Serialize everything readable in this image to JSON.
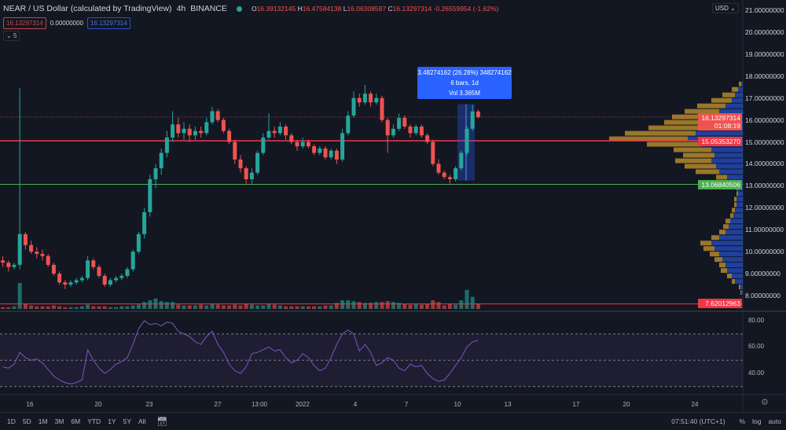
{
  "header": {
    "symbol": "NEAR / US Dollar (calculated by TradingView)",
    "interval": "4h",
    "exchange": "BINANCE",
    "ohlc": {
      "o_label": "O",
      "o": "16.39132145",
      "h_label": "H",
      "h": "16.47584138",
      "l_label": "L",
      "l": "16.06308587",
      "c_label": "C",
      "c": "16.13297314",
      "change": "-0.26559954 (-1.62%)"
    },
    "sell": "16.13297314",
    "spread": "0.00000000",
    "buy": "16.13297314",
    "indicators_toggle": "5"
  },
  "measure": {
    "line1": "3.48274162 (26.28%) 348274162",
    "line2": "6 bars, 1d",
    "line3": "Vol 3.365M",
    "from_price": 13.24,
    "to_price": 16.72
  },
  "price_axis": {
    "currency": "USD",
    "ticks": [
      "8.00000000",
      "9.00000000",
      "10.00000000",
      "11.00000000",
      "12.00000000",
      "13.00000000",
      "14.00000000",
      "15.00000000",
      "16.00000000",
      "17.00000000",
      "18.00000000",
      "19.00000000",
      "20.00000000",
      "21.00000000"
    ],
    "last_price": "16.13297314",
    "countdown": "01:08:19",
    "red_level": "15.05353270",
    "green_level": "13.06840506",
    "bottom_level": "7.62012963"
  },
  "rsi_axis": {
    "ticks": [
      "80.00",
      "60.00",
      "40.00"
    ]
  },
  "time_axis": {
    "ticks": [
      "16",
      "20",
      "23",
      "27",
      "13:00",
      "2022",
      "4",
      "7",
      "10",
      "13",
      "17",
      "20",
      "24"
    ]
  },
  "toolbar": {
    "ranges": [
      "1D",
      "5D",
      "1M",
      "3M",
      "6M",
      "YTD",
      "1Y",
      "5Y",
      "All"
    ],
    "time": "07:51:40 (UTC+1)",
    "percent": "%",
    "log": "log",
    "auto": "auto"
  },
  "colors": {
    "bg": "#131722",
    "up": "#26a69a",
    "down": "#ef5350",
    "rsi": "#7e57c2",
    "red_line": "#f23645",
    "green_line": "#4caf50",
    "vp_up": "#c9982e",
    "vp_down": "#2962ff",
    "measure": "#2962ff"
  },
  "chart_data": {
    "type": "candlestick",
    "ylim": [
      7.55,
      21.4
    ],
    "levels": [
      15.0535327,
      13.06840506,
      7.62012963
    ],
    "last": 16.13297314,
    "candles": [
      [
        9.6,
        9.8,
        9.3,
        9.5
      ],
      [
        9.5,
        9.6,
        9.1,
        9.3
      ],
      [
        9.3,
        9.5,
        9.2,
        9.4
      ],
      [
        9.4,
        17.45,
        9.2,
        10.8
      ],
      [
        10.8,
        10.9,
        10.1,
        10.3
      ],
      [
        10.3,
        10.5,
        9.9,
        10.0
      ],
      [
        10.0,
        10.2,
        9.7,
        9.9
      ],
      [
        9.9,
        10.1,
        9.6,
        9.8
      ],
      [
        9.8,
        9.9,
        9.3,
        9.4
      ],
      [
        9.4,
        9.5,
        8.9,
        9.0
      ],
      [
        9.0,
        9.1,
        8.5,
        8.6
      ],
      [
        8.6,
        8.7,
        8.3,
        8.5
      ],
      [
        8.5,
        8.7,
        8.4,
        8.6
      ],
      [
        8.6,
        8.8,
        8.5,
        8.7
      ],
      [
        8.7,
        8.9,
        8.6,
        8.8
      ],
      [
        8.8,
        9.8,
        8.7,
        9.6
      ],
      [
        9.6,
        9.7,
        9.2,
        9.3
      ],
      [
        9.3,
        9.4,
        8.8,
        8.9
      ],
      [
        8.9,
        9.0,
        8.4,
        8.5
      ],
      [
        8.5,
        8.8,
        8.4,
        8.7
      ],
      [
        8.7,
        8.9,
        8.6,
        8.8
      ],
      [
        8.8,
        9.0,
        8.7,
        8.9
      ],
      [
        8.9,
        9.3,
        8.8,
        9.2
      ],
      [
        9.2,
        10.1,
        9.1,
        10.0
      ],
      [
        10.0,
        10.9,
        9.9,
        10.8
      ],
      [
        10.8,
        12.0,
        10.6,
        11.8
      ],
      [
        11.8,
        13.5,
        11.6,
        13.3
      ],
      [
        13.3,
        14.0,
        12.9,
        13.8
      ],
      [
        13.8,
        14.7,
        13.5,
        14.5
      ],
      [
        14.5,
        15.5,
        14.3,
        15.2
      ],
      [
        15.2,
        16.4,
        15.0,
        15.8
      ],
      [
        15.8,
        16.1,
        15.2,
        15.4
      ],
      [
        15.4,
        15.9,
        15.1,
        15.6
      ],
      [
        15.6,
        15.8,
        15.0,
        15.3
      ],
      [
        15.3,
        15.7,
        15.1,
        15.5
      ],
      [
        15.5,
        15.7,
        15.2,
        15.4
      ],
      [
        15.4,
        16.1,
        15.3,
        15.9
      ],
      [
        15.9,
        16.6,
        15.8,
        16.4
      ],
      [
        16.4,
        16.5,
        15.9,
        16.0
      ],
      [
        16.0,
        16.1,
        15.4,
        15.5
      ],
      [
        15.5,
        15.6,
        14.9,
        15.0
      ],
      [
        15.0,
        15.1,
        14.0,
        14.2
      ],
      [
        14.2,
        14.4,
        13.6,
        13.8
      ],
      [
        13.8,
        13.9,
        13.1,
        13.3
      ],
      [
        13.3,
        13.8,
        13.1,
        13.6
      ],
      [
        13.6,
        14.6,
        13.5,
        14.5
      ],
      [
        14.5,
        15.4,
        14.4,
        15.2
      ],
      [
        15.2,
        16.3,
        15.1,
        15.5
      ],
      [
        15.5,
        15.7,
        15.2,
        15.4
      ],
      [
        15.4,
        15.9,
        15.3,
        15.7
      ],
      [
        15.7,
        15.8,
        15.1,
        15.3
      ],
      [
        15.3,
        15.4,
        14.9,
        15.0
      ],
      [
        15.0,
        15.1,
        14.6,
        14.8
      ],
      [
        14.8,
        15.2,
        14.7,
        15.0
      ],
      [
        15.0,
        15.1,
        14.7,
        14.8
      ],
      [
        14.8,
        14.9,
        14.4,
        14.5
      ],
      [
        14.5,
        14.8,
        14.4,
        14.7
      ],
      [
        14.7,
        14.8,
        14.2,
        14.3
      ],
      [
        14.3,
        14.7,
        14.2,
        14.6
      ],
      [
        14.6,
        14.7,
        14.0,
        14.2
      ],
      [
        14.2,
        15.6,
        14.1,
        15.4
      ],
      [
        15.4,
        16.4,
        15.3,
        16.2
      ],
      [
        16.2,
        17.3,
        16.1,
        17.0
      ],
      [
        17.0,
        17.2,
        16.6,
        16.8
      ],
      [
        16.8,
        17.6,
        16.7,
        17.2
      ],
      [
        17.2,
        17.3,
        16.6,
        16.8
      ],
      [
        16.8,
        17.2,
        16.7,
        17.0
      ],
      [
        17.0,
        17.1,
        15.9,
        16.0
      ],
      [
        16.0,
        16.1,
        14.5,
        15.3
      ],
      [
        15.3,
        15.8,
        15.2,
        15.6
      ],
      [
        15.6,
        16.3,
        15.5,
        16.1
      ],
      [
        16.1,
        16.2,
        15.6,
        15.7
      ],
      [
        15.7,
        15.8,
        15.2,
        15.4
      ],
      [
        15.4,
        15.8,
        15.3,
        15.7
      ],
      [
        15.7,
        15.8,
        15.2,
        15.3
      ],
      [
        15.3,
        15.4,
        14.9,
        15.0
      ],
      [
        15.0,
        15.1,
        13.9,
        14.0
      ],
      [
        14.0,
        14.2,
        13.5,
        13.6
      ],
      [
        13.6,
        13.7,
        13.3,
        13.4
      ],
      [
        13.4,
        13.5,
        13.1,
        13.3
      ],
      [
        13.3,
        13.9,
        13.2,
        13.8
      ],
      [
        13.8,
        14.6,
        13.7,
        14.5
      ],
      [
        14.5,
        15.7,
        14.4,
        15.6
      ],
      [
        15.6,
        16.7,
        15.5,
        16.39
      ],
      [
        16.39132145,
        16.47584138,
        16.06308587,
        16.13297314
      ]
    ],
    "volume": [
      2,
      2,
      3,
      30,
      6,
      4,
      3,
      3,
      3,
      4,
      3,
      2,
      2,
      2,
      3,
      5,
      3,
      3,
      3,
      2,
      2,
      3,
      3,
      4,
      5,
      8,
      10,
      12,
      9,
      8,
      8,
      5,
      4,
      4,
      4,
      5,
      4,
      6,
      5,
      4,
      4,
      5,
      4,
      6,
      5,
      4,
      4,
      6,
      5,
      4,
      3,
      3,
      3,
      3,
      3,
      3,
      3,
      4,
      4,
      7,
      10,
      10,
      9,
      8,
      7,
      7,
      8,
      8,
      9,
      8,
      7,
      6,
      5,
      6,
      5,
      6,
      10,
      8,
      4,
      6,
      5,
      10,
      22,
      14,
      6
    ],
    "rsi": {
      "values": [
        45,
        44,
        47,
        56,
        52,
        50,
        51,
        48,
        43,
        38,
        35,
        33,
        32,
        33,
        35,
        58,
        50,
        44,
        40,
        43,
        47,
        49,
        52,
        62,
        74,
        80,
        77,
        78,
        76,
        79,
        78,
        72,
        70,
        68,
        64,
        62,
        68,
        72,
        62,
        56,
        47,
        42,
        40,
        45,
        55,
        56,
        58,
        60,
        57,
        58,
        52,
        48,
        50,
        55,
        52,
        46,
        42,
        44,
        52,
        62,
        70,
        73,
        70,
        57,
        62,
        56,
        46,
        48,
        52,
        50,
        44,
        42,
        47,
        45,
        46,
        40,
        36,
        34,
        35,
        40,
        46,
        52,
        60,
        64,
        65
      ],
      "upper": 70,
      "middle": 50,
      "lower": 30,
      "ylim": [
        24,
        87
      ]
    },
    "volume_profile": {
      "rows": [
        [
          8.0,
          1,
          2
        ],
        [
          8.25,
          2,
          3
        ],
        [
          8.5,
          4,
          10
        ],
        [
          8.75,
          6,
          14
        ],
        [
          9.0,
          8,
          20
        ],
        [
          9.25,
          8,
          22
        ],
        [
          9.5,
          10,
          26
        ],
        [
          9.75,
          12,
          30
        ],
        [
          10.0,
          14,
          36
        ],
        [
          10.25,
          14,
          40
        ],
        [
          10.5,
          10,
          30
        ],
        [
          10.75,
          8,
          22
        ],
        [
          11.0,
          7,
          18
        ],
        [
          11.25,
          6,
          16
        ],
        [
          11.5,
          4,
          12
        ],
        [
          11.75,
          4,
          10
        ],
        [
          12.0,
          3,
          8
        ],
        [
          12.25,
          3,
          8
        ],
        [
          12.5,
          2,
          6
        ],
        [
          12.75,
          2,
          6
        ],
        [
          13.0,
          5,
          10
        ],
        [
          13.25,
          14,
          20
        ],
        [
          13.5,
          30,
          30
        ],
        [
          13.75,
          40,
          34
        ],
        [
          14.0,
          46,
          40
        ],
        [
          14.25,
          40,
          36
        ],
        [
          14.5,
          48,
          40
        ],
        [
          14.75,
          70,
          52
        ],
        [
          15.0,
          100,
          70
        ],
        [
          15.25,
          90,
          60
        ],
        [
          15.5,
          70,
          50
        ],
        [
          15.75,
          56,
          44
        ],
        [
          16.0,
          50,
          40
        ],
        [
          16.25,
          44,
          30
        ],
        [
          16.5,
          36,
          22
        ],
        [
          16.75,
          26,
          14
        ],
        [
          17.0,
          16,
          10
        ],
        [
          17.25,
          8,
          6
        ],
        [
          17.5,
          3,
          2
        ]
      ]
    }
  }
}
